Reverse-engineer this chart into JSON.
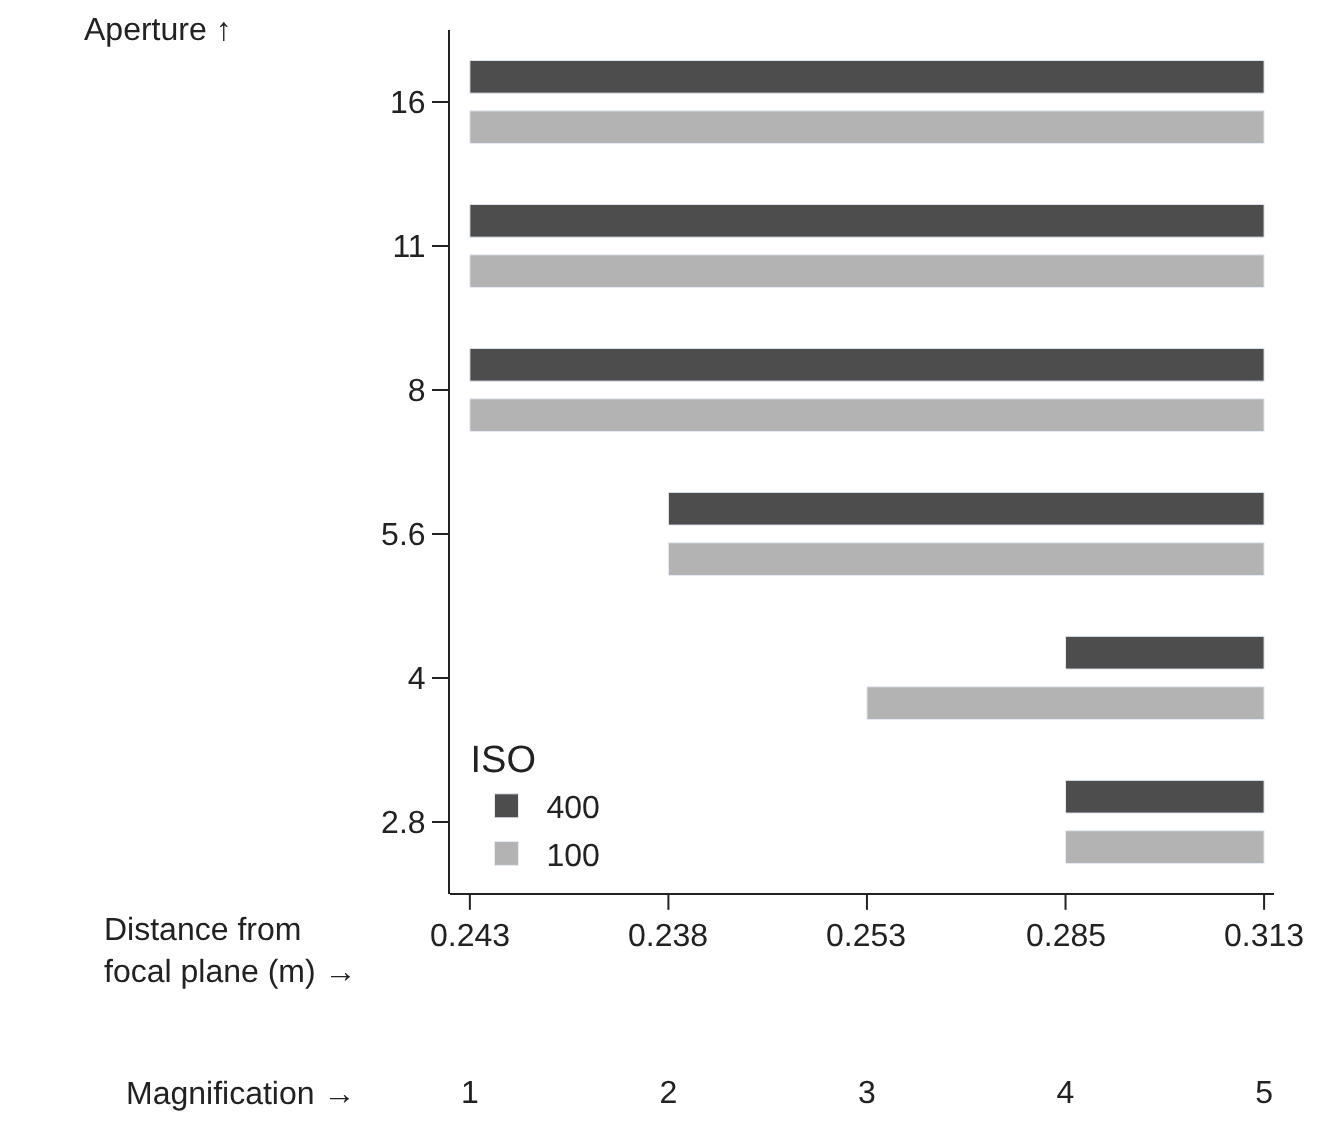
{
  "chart_data": {
    "type": "bar",
    "orientation": "horizontal",
    "categories": [
      "16",
      "11",
      "8",
      "5.6",
      "4",
      "2.8"
    ],
    "ylabel": "Aperture ↑",
    "xlabel": "Magnification →",
    "annotations": [
      "Distance from\nfocal plane (m) →",
      "0.243",
      "0.238",
      "0.253",
      "0.285",
      "0.313"
    ],
    "xlim": [
      0.9,
      5.05
    ],
    "xticks": [
      1,
      2,
      3,
      4,
      5
    ],
    "legend_title": "ISO",
    "legend": "bottom left",
    "series": [
      {
        "name": "400",
        "color": "#4d4d4d",
        "base": [
          1,
          1,
          1,
          2,
          4,
          4
        ],
        "values": [
          4,
          4,
          4,
          3,
          1,
          1
        ]
      },
      {
        "name": "100",
        "color": "#b3b3b3",
        "base": [
          1,
          1,
          1,
          2,
          3,
          4
        ],
        "values": [
          4,
          4,
          4,
          3,
          2,
          1
        ]
      }
    ]
  }
}
